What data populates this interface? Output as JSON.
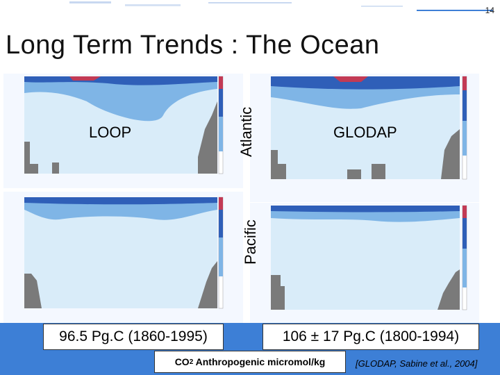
{
  "page_number": "14",
  "title": "Long Term Trends : The Ocean",
  "labels": {
    "loop": "LOOP",
    "glodap": "GLODAP",
    "atlantic": "Atlantic",
    "pacific": "Pacific"
  },
  "totals": {
    "loop": "96.5 Pg.C (1860-1995)",
    "glodap": "106 ± 17 Pg.C (1800-1994)"
  },
  "units_label": {
    "prefix": "CO",
    "subscript": "2",
    "suffix": " Anthropogenic micromol/kg"
  },
  "citation": "[GLODAP, Sabine et al., 2004]",
  "colors": {
    "band_blue": "#3d7fd6",
    "contour_light": "#cfe6f6",
    "contour_mid": "#7fb5e6",
    "contour_dark": "#2f5fb8",
    "surface_red": "#c23a55",
    "bathymetry_gray": "#7a7a7a"
  }
}
